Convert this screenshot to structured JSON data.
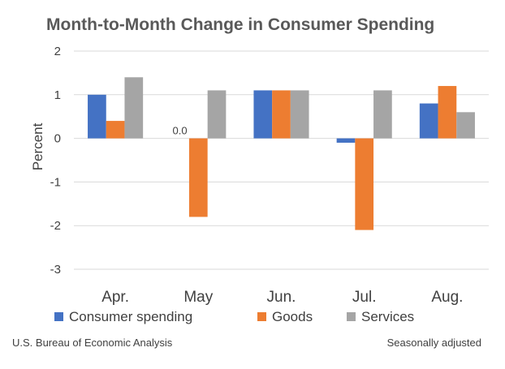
{
  "chart_data": {
    "type": "bar",
    "title": "Month-to-Month Change in Consumer Spending",
    "ylabel": "Percent",
    "xlabel": "",
    "categories": [
      "Apr.",
      "May",
      "Jun.",
      "Jul.",
      "Aug."
    ],
    "series": [
      {
        "name": "Consumer spending",
        "color": "#4472C4",
        "values": [
          1.0,
          0.0,
          1.1,
          -0.1,
          0.8
        ]
      },
      {
        "name": "Goods",
        "color": "#ED7D31",
        "values": [
          0.4,
          -1.8,
          1.1,
          -2.1,
          1.2
        ]
      },
      {
        "name": "Services",
        "color": "#A5A5A5",
        "values": [
          1.4,
          1.1,
          1.1,
          1.1,
          0.6
        ]
      }
    ],
    "ylim": [
      -3,
      2
    ],
    "yticks": [
      "2",
      "1",
      "0",
      "-1",
      "-2",
      "-3"
    ],
    "data_labels": [
      {
        "category": "May",
        "series": "Consumer spending",
        "text": "0.0"
      }
    ],
    "grid": true,
    "legend": "bottom"
  },
  "footer": {
    "source": "U.S. Bureau of Economic Analysis",
    "note": "Seasonally adjusted"
  }
}
